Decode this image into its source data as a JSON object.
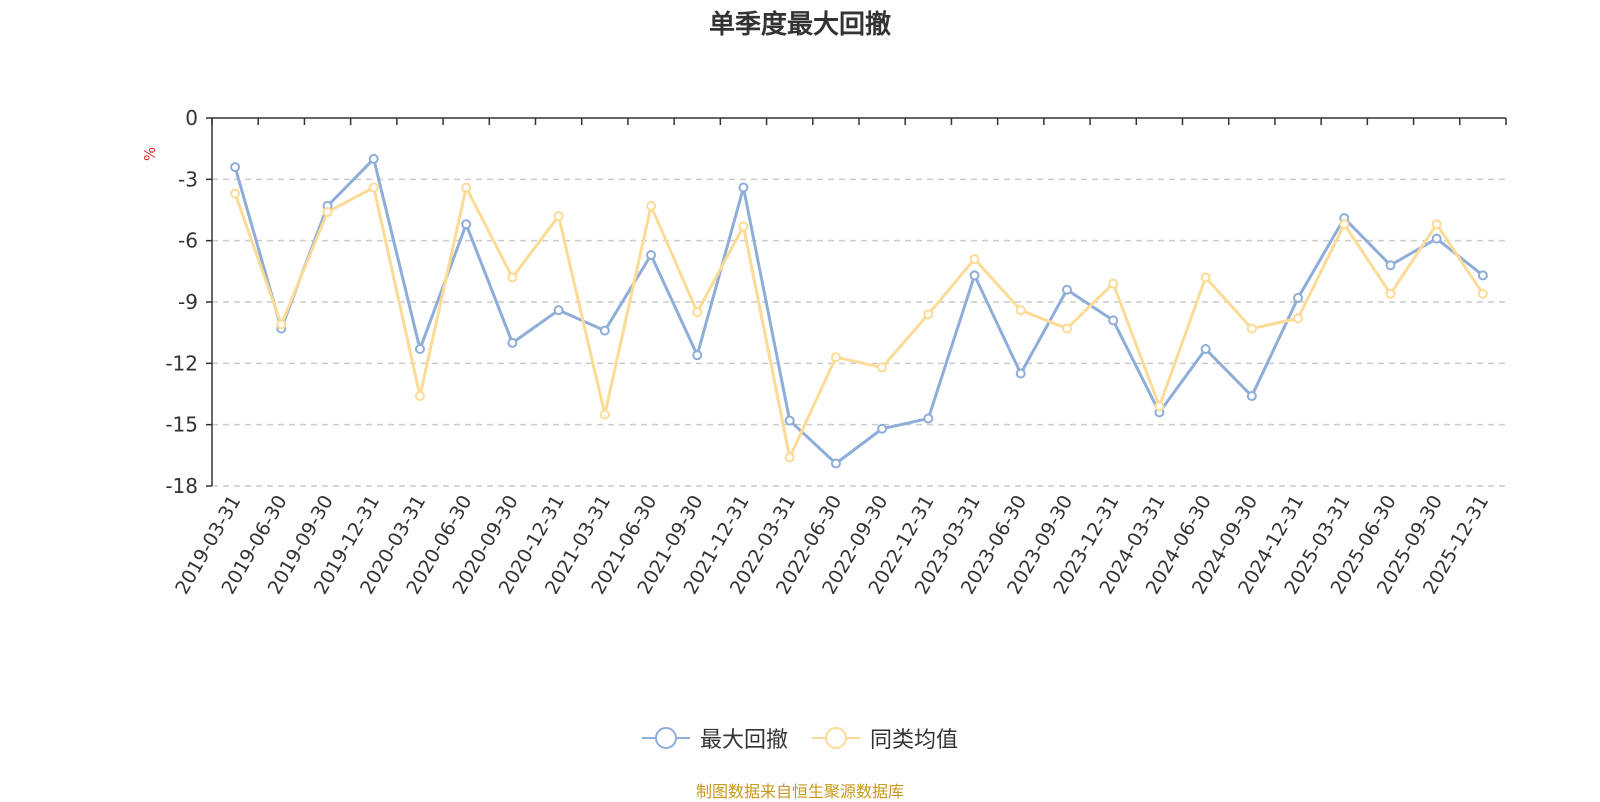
{
  "chart_data": {
    "type": "line",
    "title": "单季度最大回撤",
    "ylabel": "%",
    "ylim": [
      -18,
      0
    ],
    "yticks": [
      0,
      -3,
      -6,
      -9,
      -12,
      -15,
      -18
    ],
    "grid": true,
    "legend_position": "bottom",
    "x": [
      "2019-03-31",
      "2019-06-30",
      "2019-09-30",
      "2019-12-31",
      "2020-03-31",
      "2020-06-30",
      "2020-09-30",
      "2020-12-31",
      "2021-03-31",
      "2021-06-30",
      "2021-09-30",
      "2021-12-31",
      "2022-03-31",
      "2022-06-30",
      "2022-09-30",
      "2022-12-31",
      "2023-03-31",
      "2023-06-30",
      "2023-09-30",
      "2023-12-31",
      "2024-03-31",
      "2024-06-30",
      "2024-09-30",
      "2024-12-31",
      "2025-03-31",
      "2025-06-30",
      "2025-09-30",
      "2025-12-31"
    ],
    "series": [
      {
        "name": "最大回撤",
        "color": "#8fadd9",
        "values": [
          -2.4,
          -10.3,
          -4.3,
          -2.0,
          -11.3,
          -5.2,
          -11.0,
          -9.4,
          -10.4,
          -6.7,
          -11.6,
          -3.4,
          -14.8,
          -16.9,
          -15.2,
          -14.7,
          -7.7,
          -12.5,
          -8.4,
          -9.9,
          -14.4,
          -11.3,
          -13.6,
          -8.8,
          -4.9,
          -7.2,
          -5.9,
          -7.7
        ]
      },
      {
        "name": "同类均值",
        "color": "#fcdb96",
        "values": [
          -3.7,
          -10.1,
          -4.6,
          -3.4,
          -13.6,
          -3.4,
          -7.8,
          -4.8,
          -14.5,
          -4.3,
          -9.5,
          -5.3,
          -16.6,
          -11.7,
          -12.2,
          -9.6,
          -6.9,
          -9.4,
          -10.3,
          -8.1,
          -14.1,
          -7.8,
          -10.3,
          -9.8,
          -5.2,
          -8.6,
          -5.2,
          -8.6
        ]
      }
    ]
  },
  "source_note": "制图数据来自恒生聚源数据库"
}
